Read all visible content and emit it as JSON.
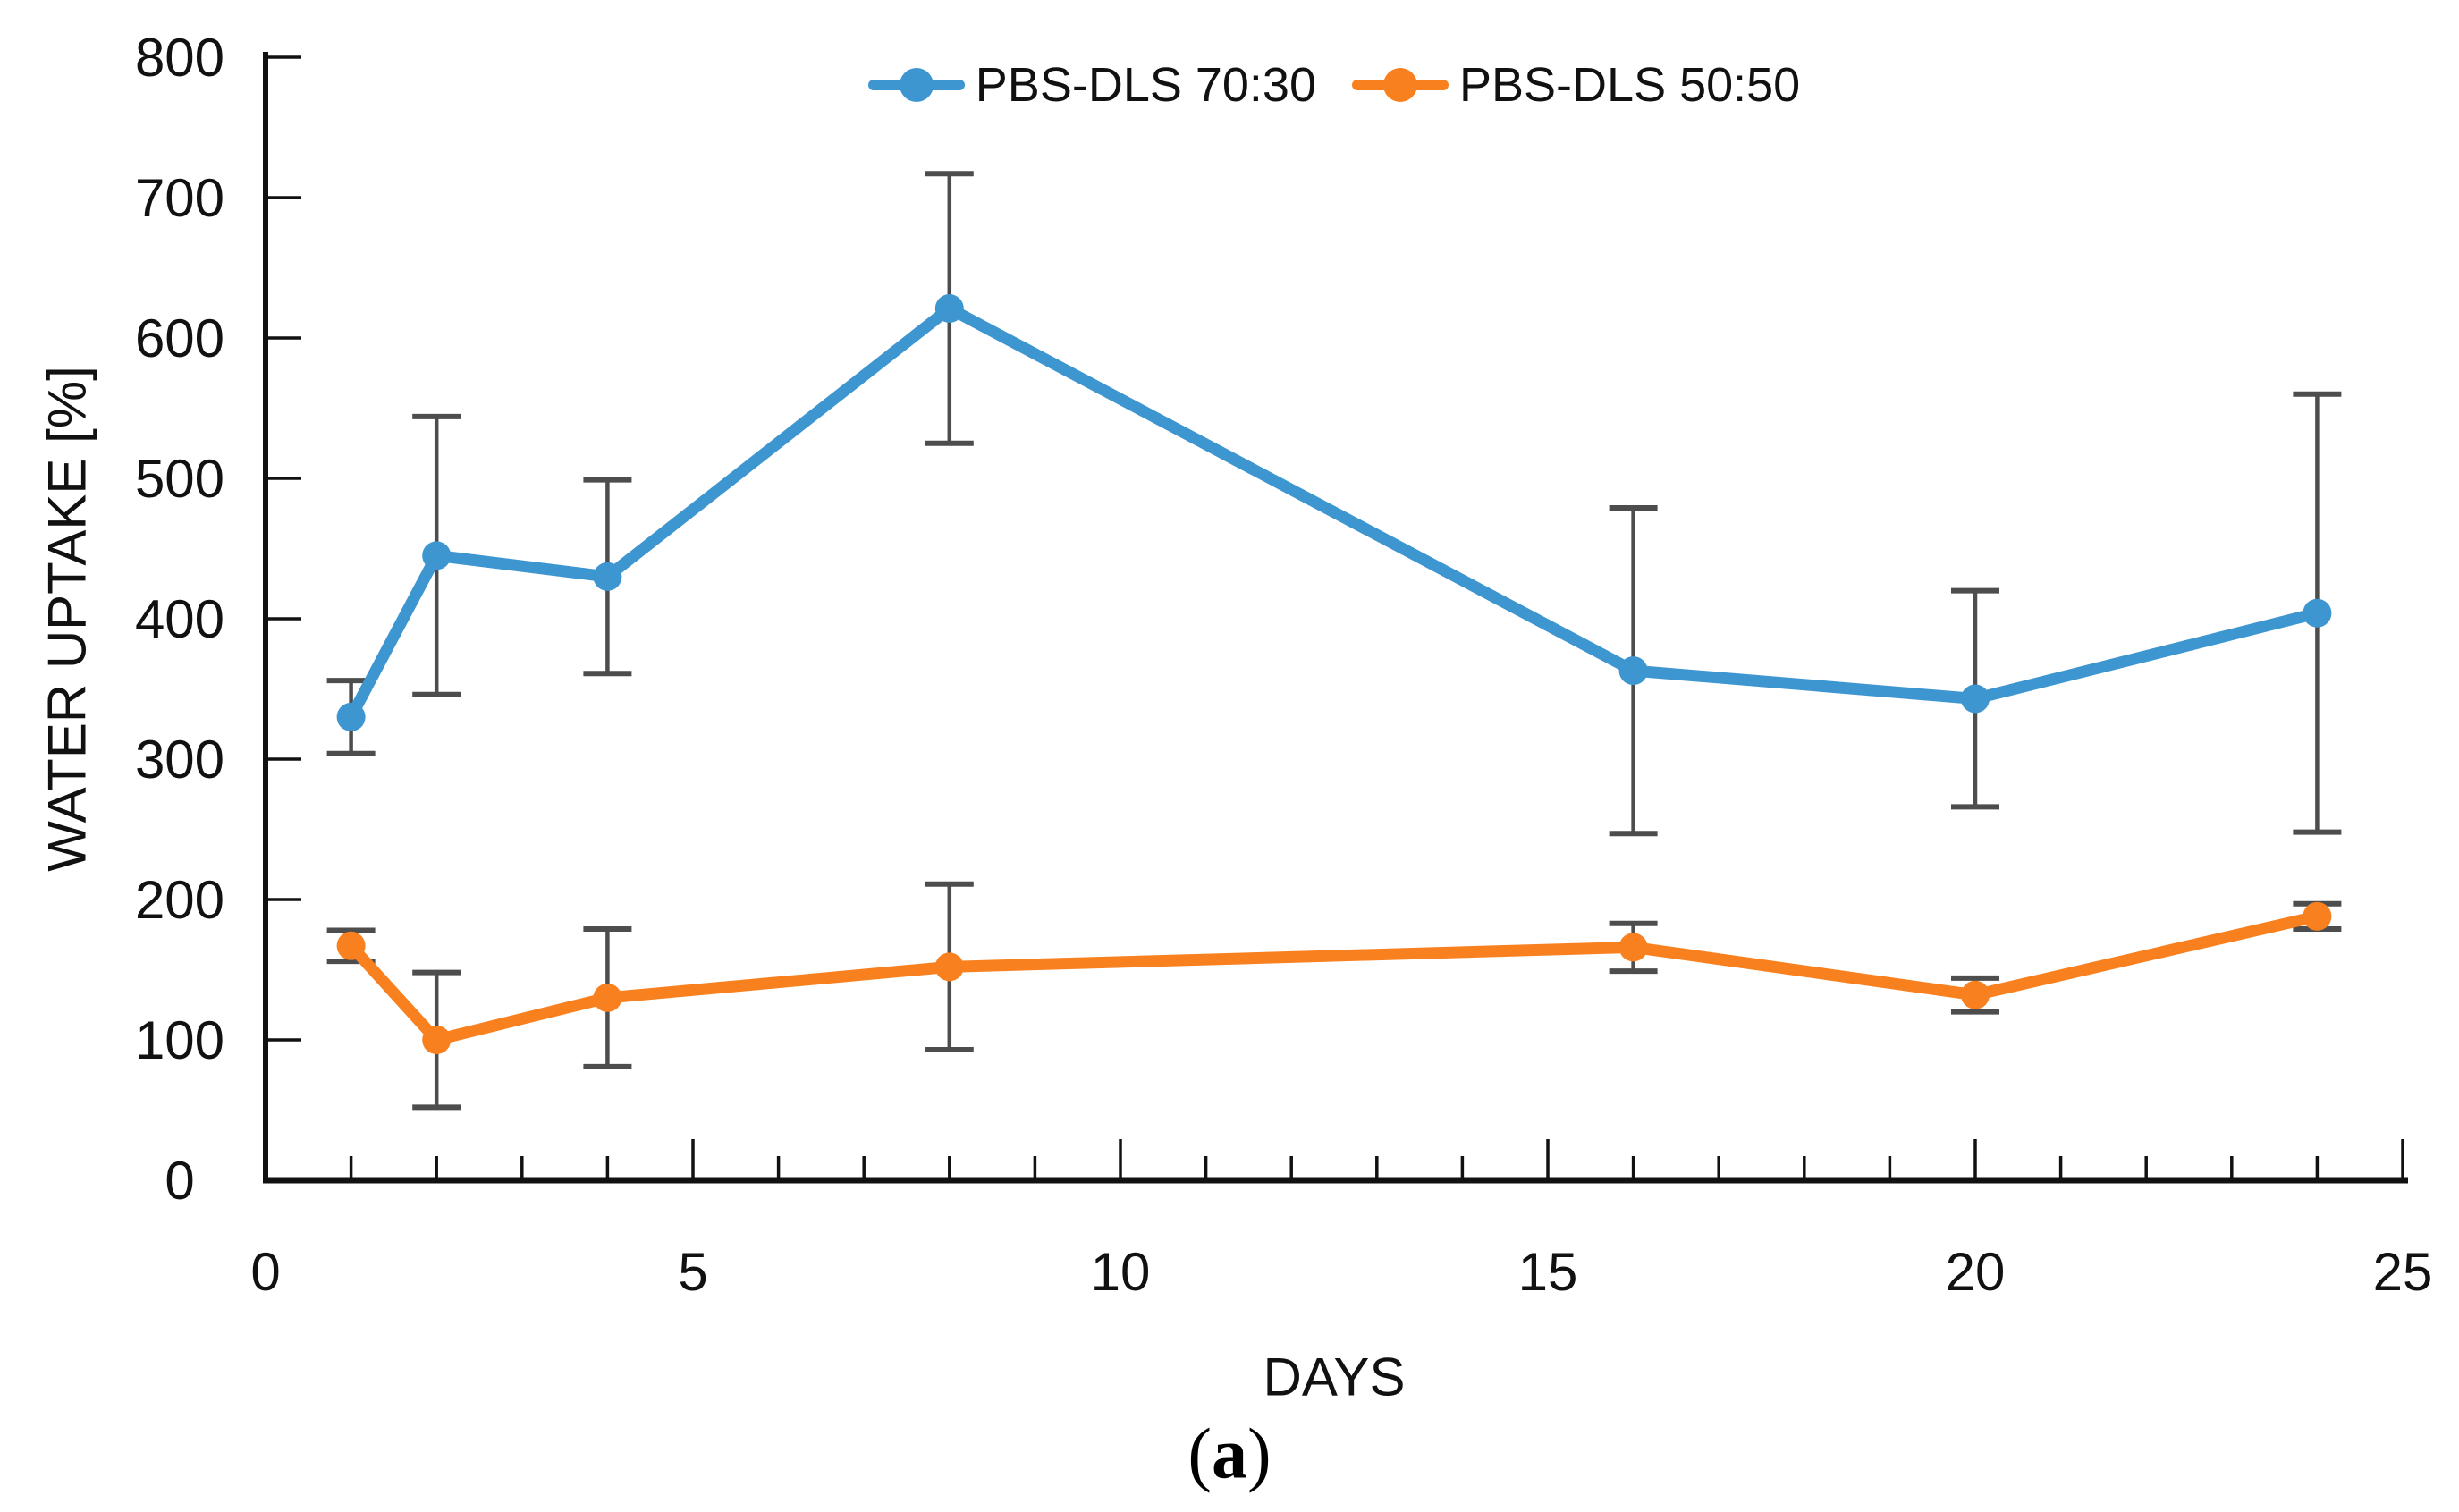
{
  "figure": {
    "caption_open": "(",
    "caption_letter": "a",
    "caption_close": ")"
  },
  "chart_data": {
    "type": "line",
    "title": "",
    "xlabel": "DAYS",
    "ylabel": "WATER UPTAKE [%]",
    "xlim": [
      0,
      25
    ],
    "ylim": [
      0,
      800
    ],
    "xticks": [
      0,
      5,
      10,
      15,
      20,
      25
    ],
    "xticks_minor_step": 1,
    "yticks": [
      0,
      100,
      200,
      300,
      400,
      500,
      600,
      700,
      800
    ],
    "grid": false,
    "legend_position": "top-center",
    "markers": "circle",
    "x": [
      1,
      2,
      4,
      8,
      16,
      20,
      24
    ],
    "series": [
      {
        "name": "PBS-DLS 70:30",
        "color": "#3E96D1",
        "values": [
          330,
          445,
          430,
          621,
          363,
          343,
          404
        ],
        "errors": [
          26,
          99,
          69,
          96,
          116,
          77,
          156
        ]
      },
      {
        "name": "PBS-DLS 50:50",
        "color": "#F8801F",
        "values": [
          167,
          100,
          130,
          152,
          166,
          132,
          188
        ],
        "errors": [
          11,
          48,
          49,
          59,
          17,
          12,
          9
        ]
      }
    ],
    "error_bar_color": "#4D4D4D",
    "axis_color": "#111111",
    "tick_label_color": "#111111"
  }
}
